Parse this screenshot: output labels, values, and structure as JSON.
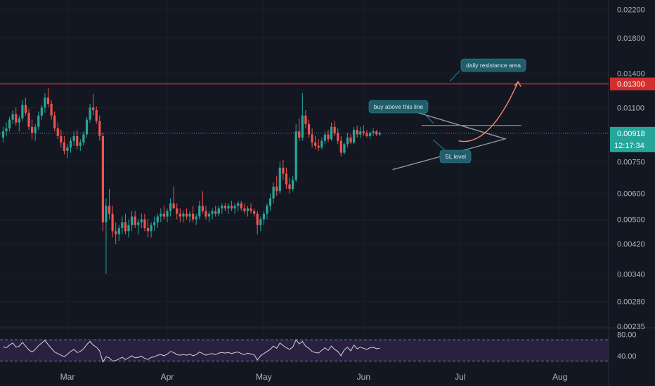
{
  "colors": {
    "background": "#131722",
    "up": "#26a69a",
    "down": "#ef5350",
    "resistance": "#d32f2f",
    "pattern": "#9598a1",
    "rsi": "#d1d4dc",
    "rsi_band": "#2a2140",
    "annotation_bg": "#1f5f6b"
  },
  "chart_data": [
    {
      "type": "candlestick",
      "scale": "log",
      "ylim": [
        0.00235,
        0.0235
      ],
      "price_ticks": [
        0.022,
        0.018,
        0.014,
        0.011,
        0.0075,
        0.006,
        0.005,
        0.0042,
        0.0034,
        0.0028,
        0.00235
      ],
      "price_tick_labels": [
        "0.02200",
        "0.01800",
        "0.01400",
        "0.01100",
        "0.00750",
        "0.00600",
        "0.00500",
        "0.00420",
        "0.00340",
        "0.00280",
        "0.00235"
      ],
      "x_tick_labels": [
        "Mar",
        "Apr",
        "May",
        "Jun",
        "Jul",
        "Aug"
      ],
      "x_tick_days": [
        0,
        31,
        61,
        92,
        122,
        153
      ],
      "first_day": -20,
      "resistance": {
        "value": 0.013,
        "label": "0.01300"
      },
      "last_price": {
        "value": 0.00918,
        "label": "0.00918",
        "countdown": "12:17:34"
      },
      "pattern": "symmetrical triangle",
      "annotations": [
        "daily resistance area",
        "buy above this line",
        "SL level"
      ],
      "candles": [
        [
          0.0089,
          0.0096,
          0.0086,
          0.0093
        ],
        [
          0.0093,
          0.0099,
          0.009,
          0.0095
        ],
        [
          0.0095,
          0.0103,
          0.0093,
          0.0101
        ],
        [
          0.0101,
          0.0108,
          0.0098,
          0.0105
        ],
        [
          0.0105,
          0.011,
          0.0097,
          0.0099
        ],
        [
          0.0099,
          0.0104,
          0.0093,
          0.0102
        ],
        [
          0.0102,
          0.0116,
          0.01,
          0.0112
        ],
        [
          0.0112,
          0.0118,
          0.0104,
          0.0106
        ],
        [
          0.0106,
          0.0109,
          0.0094,
          0.0096
        ],
        [
          0.0096,
          0.0101,
          0.0088,
          0.0092
        ],
        [
          0.0092,
          0.0098,
          0.0087,
          0.0096
        ],
        [
          0.0096,
          0.0107,
          0.0094,
          0.0104
        ],
        [
          0.0104,
          0.0112,
          0.0101,
          0.011
        ],
        [
          0.011,
          0.0122,
          0.0106,
          0.0118
        ],
        [
          0.0118,
          0.0126,
          0.011,
          0.0113
        ],
        [
          0.0113,
          0.0116,
          0.0101,
          0.0104
        ],
        [
          0.0104,
          0.0107,
          0.0093,
          0.0095
        ],
        [
          0.0095,
          0.0099,
          0.0088,
          0.009
        ],
        [
          0.009,
          0.0094,
          0.0083,
          0.0086
        ],
        [
          0.0086,
          0.009,
          0.0079,
          0.0081
        ],
        [
          0.0081,
          0.0085,
          0.0077,
          0.0083
        ],
        [
          0.0083,
          0.0089,
          0.008,
          0.0087
        ],
        [
          0.0087,
          0.0093,
          0.0084,
          0.009
        ],
        [
          0.009,
          0.0094,
          0.0082,
          0.0084
        ],
        [
          0.0084,
          0.0088,
          0.0081,
          0.0086
        ],
        [
          0.0086,
          0.0093,
          0.0084,
          0.0091
        ],
        [
          0.0091,
          0.0103,
          0.0089,
          0.0101
        ],
        [
          0.0101,
          0.0113,
          0.0099,
          0.011
        ],
        [
          0.011,
          0.0121,
          0.0104,
          0.0108
        ],
        [
          0.0108,
          0.0111,
          0.0098,
          0.01
        ],
        [
          0.01,
          0.0104,
          0.0087,
          0.009
        ],
        [
          0.009,
          0.0092,
          0.0046,
          0.0049
        ],
        [
          0.0049,
          0.0058,
          0.0034,
          0.0055
        ],
        [
          0.0055,
          0.0062,
          0.005,
          0.0052
        ],
        [
          0.0052,
          0.0055,
          0.0044,
          0.0046
        ],
        [
          0.0046,
          0.0049,
          0.0042,
          0.0045
        ],
        [
          0.0045,
          0.0048,
          0.0043,
          0.0047
        ],
        [
          0.0047,
          0.0051,
          0.0045,
          0.0049
        ],
        [
          0.0049,
          0.0052,
          0.0045,
          0.0046
        ],
        [
          0.0046,
          0.005,
          0.0044,
          0.0048
        ],
        [
          0.0048,
          0.0053,
          0.0046,
          0.0051
        ],
        [
          0.0051,
          0.0053,
          0.0047,
          0.0048
        ],
        [
          0.0048,
          0.005,
          0.0045,
          0.0049
        ],
        [
          0.0049,
          0.0052,
          0.0047,
          0.005
        ],
        [
          0.005,
          0.0052,
          0.0046,
          0.0047
        ],
        [
          0.0047,
          0.005,
          0.0044,
          0.0046
        ],
        [
          0.0046,
          0.0049,
          0.0044,
          0.0048
        ],
        [
          0.0048,
          0.0051,
          0.0046,
          0.0049
        ],
        [
          0.0049,
          0.0052,
          0.0047,
          0.0051
        ],
        [
          0.0051,
          0.0054,
          0.0049,
          0.0052
        ],
        [
          0.0052,
          0.0055,
          0.005,
          0.0051
        ],
        [
          0.0051,
          0.0054,
          0.0049,
          0.0053
        ],
        [
          0.0053,
          0.0058,
          0.0051,
          0.0056
        ],
        [
          0.0056,
          0.0063,
          0.0054,
          0.0054
        ],
        [
          0.0054,
          0.0056,
          0.005,
          0.0052
        ],
        [
          0.0052,
          0.0054,
          0.0049,
          0.0051
        ],
        [
          0.0051,
          0.0053,
          0.0049,
          0.0052
        ],
        [
          0.0052,
          0.0054,
          0.005,
          0.0051
        ],
        [
          0.0051,
          0.0053,
          0.0049,
          0.0052
        ],
        [
          0.0052,
          0.0055,
          0.0049,
          0.005
        ],
        [
          0.005,
          0.0052,
          0.0048,
          0.0051
        ],
        [
          0.0051,
          0.0057,
          0.005,
          0.0055
        ],
        [
          0.0055,
          0.0061,
          0.0052,
          0.0053
        ],
        [
          0.0053,
          0.0055,
          0.005,
          0.0051
        ],
        [
          0.0051,
          0.0053,
          0.0049,
          0.0052
        ],
        [
          0.0052,
          0.0054,
          0.005,
          0.0053
        ],
        [
          0.0053,
          0.0055,
          0.0051,
          0.0052
        ],
        [
          0.0052,
          0.0055,
          0.0051,
          0.0054
        ],
        [
          0.0054,
          0.0056,
          0.0052,
          0.0055
        ],
        [
          0.0055,
          0.0056,
          0.0053,
          0.0054
        ],
        [
          0.0054,
          0.0056,
          0.0052,
          0.0055
        ],
        [
          0.0055,
          0.0057,
          0.0053,
          0.0054
        ],
        [
          0.0054,
          0.0056,
          0.0052,
          0.0055
        ],
        [
          0.0055,
          0.0057,
          0.0053,
          0.0056
        ],
        [
          0.0056,
          0.0057,
          0.0053,
          0.0054
        ],
        [
          0.0054,
          0.0056,
          0.0052,
          0.0053
        ],
        [
          0.0053,
          0.0055,
          0.0051,
          0.0054
        ],
        [
          0.0054,
          0.0056,
          0.0052,
          0.0053
        ],
        [
          0.0053,
          0.0054,
          0.0051,
          0.0052
        ],
        [
          0.0052,
          0.0053,
          0.0045,
          0.0048
        ],
        [
          0.0048,
          0.0051,
          0.0046,
          0.005
        ],
        [
          0.005,
          0.0053,
          0.0048,
          0.0052
        ],
        [
          0.0052,
          0.0056,
          0.005,
          0.0055
        ],
        [
          0.0055,
          0.006,
          0.0053,
          0.0058
        ],
        [
          0.0058,
          0.0065,
          0.0056,
          0.0063
        ],
        [
          0.0063,
          0.0068,
          0.0059,
          0.0061
        ],
        [
          0.0061,
          0.0075,
          0.006,
          0.0072
        ],
        [
          0.0072,
          0.0076,
          0.0066,
          0.0069
        ],
        [
          0.0069,
          0.0072,
          0.0062,
          0.0064
        ],
        [
          0.0064,
          0.0067,
          0.006,
          0.0062
        ],
        [
          0.0062,
          0.0068,
          0.0061,
          0.0066
        ],
        [
          0.0066,
          0.0098,
          0.0065,
          0.0093
        ],
        [
          0.0093,
          0.0102,
          0.0087,
          0.0089
        ],
        [
          0.0089,
          0.0122,
          0.0087,
          0.0104
        ],
        [
          0.0104,
          0.0108,
          0.0095,
          0.0098
        ],
        [
          0.0098,
          0.0101,
          0.0089,
          0.0091
        ],
        [
          0.0091,
          0.0095,
          0.0083,
          0.0086
        ],
        [
          0.0086,
          0.009,
          0.0082,
          0.0084
        ],
        [
          0.0084,
          0.0088,
          0.0081,
          0.0083
        ],
        [
          0.0083,
          0.0089,
          0.0082,
          0.0087
        ],
        [
          0.0087,
          0.0093,
          0.0085,
          0.0091
        ],
        [
          0.0091,
          0.0094,
          0.0086,
          0.0088
        ],
        [
          0.0088,
          0.0099,
          0.0087,
          0.0096
        ],
        [
          0.0096,
          0.01,
          0.009,
          0.0092
        ],
        [
          0.0092,
          0.0095,
          0.0085,
          0.0087
        ],
        [
          0.0087,
          0.009,
          0.0078,
          0.008
        ],
        [
          0.008,
          0.0086,
          0.0079,
          0.0085
        ],
        [
          0.0085,
          0.0092,
          0.0083,
          0.0089
        ],
        [
          0.0089,
          0.0091,
          0.0085,
          0.0086
        ],
        [
          0.0086,
          0.0096,
          0.0085,
          0.0094
        ],
        [
          0.0094,
          0.0097,
          0.0089,
          0.0091
        ],
        [
          0.0091,
          0.0096,
          0.0089,
          0.0093
        ],
        [
          0.0093,
          0.0097,
          0.009,
          0.0092
        ],
        [
          0.0092,
          0.0094,
          0.0089,
          0.009
        ],
        [
          0.009,
          0.0093,
          0.0088,
          0.0092
        ],
        [
          0.0092,
          0.0095,
          0.009,
          0.0093
        ],
        [
          0.0093,
          0.0094,
          0.009,
          0.0091
        ],
        [
          0.0091,
          0.0093,
          0.009,
          0.0092
        ]
      ],
      "rsi": {
        "ylim": [
          20,
          90
        ],
        "tick_labels": [
          "80.00",
          "40.00"
        ],
        "tick_values": [
          80,
          40
        ],
        "band": [
          70,
          30
        ],
        "values": [
          57,
          55,
          60,
          64,
          56,
          58,
          65,
          58,
          51,
          47,
          52,
          59,
          64,
          69,
          61,
          54,
          47,
          44,
          41,
          38,
          43,
          48,
          52,
          46,
          48,
          53,
          61,
          67,
          60,
          56,
          49,
          28,
          38,
          36,
          30,
          31,
          34,
          37,
          33,
          36,
          40,
          36,
          37,
          39,
          35,
          33,
          37,
          38,
          41,
          42,
          40,
          43,
          48,
          46,
          42,
          41,
          42,
          41,
          43,
          40,
          42,
          47,
          44,
          41,
          43,
          44,
          42,
          45,
          46,
          45,
          46,
          44,
          46,
          47,
          44,
          42,
          45,
          43,
          42,
          32,
          40,
          44,
          48,
          52,
          58,
          54,
          64,
          59,
          55,
          52,
          56,
          70,
          62,
          67,
          58,
          54,
          48,
          46,
          45,
          50,
          55,
          50,
          58,
          52,
          48,
          40,
          51,
          56,
          49,
          60,
          53,
          56,
          54,
          52,
          55,
          56,
          53,
          54
        ]
      }
    }
  ]
}
